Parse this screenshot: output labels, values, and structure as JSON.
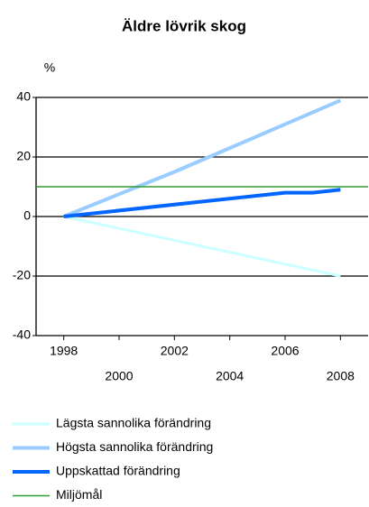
{
  "chart_data": {
    "type": "line",
    "title": "Äldre lövrik skog",
    "y_label": "%",
    "xlim": [
      1997,
      2009
    ],
    "xticks": [
      1998,
      2000,
      2002,
      2004,
      2006,
      2008
    ],
    "ylim": [
      -40,
      40
    ],
    "yticks": [
      -40,
      -20,
      0,
      20,
      40
    ],
    "grid": true,
    "legend": "bottom",
    "series": [
      {
        "name": "Lägsta sannolika förändring",
        "color": "#ccffff",
        "x": [
          1998,
          2008
        ],
        "values": [
          0,
          -20
        ]
      },
      {
        "name": "Högsta sannolika förändring",
        "color": "#99ccff",
        "x": [
          1998,
          2002,
          2008
        ],
        "values": [
          0,
          15,
          39
        ]
      },
      {
        "name": "Uppskattad förändring",
        "color": "#0066ff",
        "x": [
          1998,
          2002,
          2006,
          2007,
          2008
        ],
        "values": [
          0,
          4,
          8,
          8,
          9
        ]
      },
      {
        "name": "Miljömål",
        "color": "#339933",
        "x": [
          1997,
          2009
        ],
        "values": [
          10,
          10
        ]
      }
    ]
  }
}
